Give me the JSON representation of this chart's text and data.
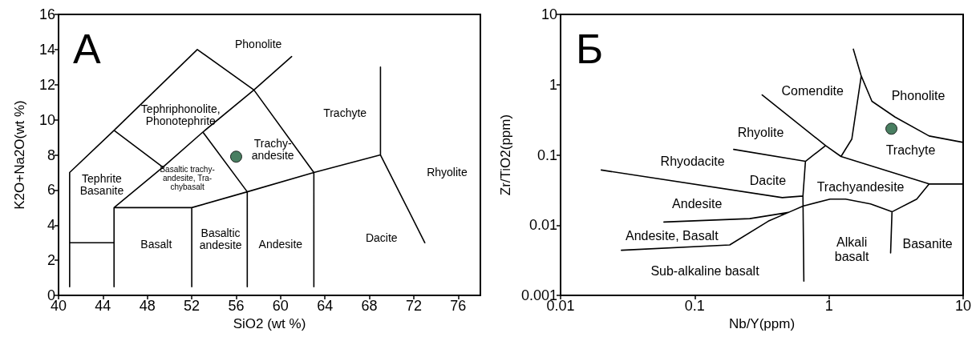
{
  "chart_data": [
    {
      "type": "scatter",
      "title": "А",
      "xlabel": "SiO2 (wt %)",
      "ylabel": "K2O+Na2O(wt %)",
      "xlim": [
        40,
        78
      ],
      "ylim": [
        0,
        16
      ],
      "xticks": [
        40,
        44,
        48,
        52,
        56,
        60,
        64,
        68,
        72,
        76
      ],
      "yticks": [
        0,
        2,
        4,
        6,
        8,
        10,
        12,
        14,
        16
      ],
      "grid": false,
      "series": [
        {
          "type": "line",
          "color": "#000000",
          "marker": "none",
          "x": [
            41,
            41,
            45,
            52.5,
            57.6,
            61,
            null,
            41,
            45,
            null,
            45,
            45,
            49.4,
            53,
            57.6,
            63,
            63,
            null,
            45,
            49.4,
            null,
            45,
            52,
            52,
            null,
            52,
            57,
            63,
            69,
            69,
            null,
            53,
            57,
            57,
            null,
            69,
            73
          ],
          "values": [
            0.5,
            7,
            9.4,
            14,
            11.7,
            13.6,
            null,
            3,
            3,
            null,
            0.5,
            5,
            7.3,
            9.3,
            11.7,
            7,
            0.5,
            null,
            9.4,
            7.3,
            null,
            5,
            5,
            0.5,
            null,
            5,
            5.9,
            7,
            8,
            13,
            null,
            9.3,
            5.9,
            0.5,
            null,
            8,
            3
          ]
        },
        {
          "color": "#1b5e3a",
          "marker": "circle",
          "x": [
            56
          ],
          "values": [
            7.9
          ]
        }
      ],
      "annotations": [
        "Phonolite",
        "Tephriphonolite,\nPhonotephrite",
        "Tephrite\nBasanite",
        "Basaltic trachy-\nandesite, Tra-\nchybasalt",
        "Trachy-\nandesite",
        "Trachyte",
        "Rhyolite",
        "Basalt",
        "Basaltic\nandesite",
        "Andesite",
        "Dacite"
      ]
    },
    {
      "type": "scatter",
      "title": "Б",
      "xlabel": "Nb/Y(ppm)",
      "ylabel": "Zr/TiO2(ppm)",
      "log": "xy",
      "xlim": [
        0.01,
        10
      ],
      "ylim": [
        0.001,
        10
      ],
      "xticks": [
        0.01,
        0.1,
        1,
        10
      ],
      "yticks": [
        0.001,
        0.01,
        0.1,
        1,
        10
      ],
      "grid": false,
      "series": [
        {
          "type": "line",
          "color": "#000000",
          "marker": "none",
          "x": [
            0.318,
            0.944,
            1.23,
            null,
            0.944,
            0.668,
            0.64,
            0.65,
            null,
            0.195,
            0.668,
            null,
            0.0201,
            0.449,
            0.64,
            null,
            0.64,
            1.02,
            1.33,
            2.04,
            2.95,
            4.51,
            5.58,
            null,
            1.23,
            5.58,
            10,
            null,
            1.23,
            1.48,
            1.74,
            1.52,
            null,
            1.74,
            2.09,
            3.11,
            5.58,
            10,
            null,
            2.95,
            2.88,
            null,
            0.0589,
            0.257,
            0.499,
            null,
            0.0284,
            0.182,
            0.353,
            0.499,
            0.64
          ],
          "values": [
            0.714,
            0.136,
            0.095,
            null,
            0.136,
            0.081,
            0.026,
            0.0016,
            null,
            0.12,
            0.081,
            null,
            0.061,
            0.0247,
            0.026,
            null,
            0.0187,
            0.0235,
            0.0235,
            0.0201,
            0.0155,
            0.0235,
            0.0386,
            null,
            0.095,
            0.0386,
            0.0386,
            null,
            0.095,
            0.168,
            1.33,
            3.2,
            null,
            1.33,
            0.581,
            0.346,
            0.186,
            0.151,
            null,
            0.0155,
            0.00404,
            null,
            0.0111,
            0.0124,
            0.0152,
            null,
            0.0044,
            0.00524,
            0.0114,
            0.0152,
            0.0187
          ]
        },
        {
          "color": "#1b5e3a",
          "marker": "circle",
          "x": [
            2.92
          ],
          "values": [
            0.236
          ]
        }
      ],
      "annotations": [
        "Comendite",
        "Phonolite",
        "Rhyolite",
        "Trachyte",
        "Rhyodacite",
        "Dacite",
        "Trachyandesite",
        "Andesite",
        "Andesite, Basalt",
        "Alkali\nbasalt",
        "Basanite",
        "Sub-alkaline basalt"
      ]
    }
  ]
}
